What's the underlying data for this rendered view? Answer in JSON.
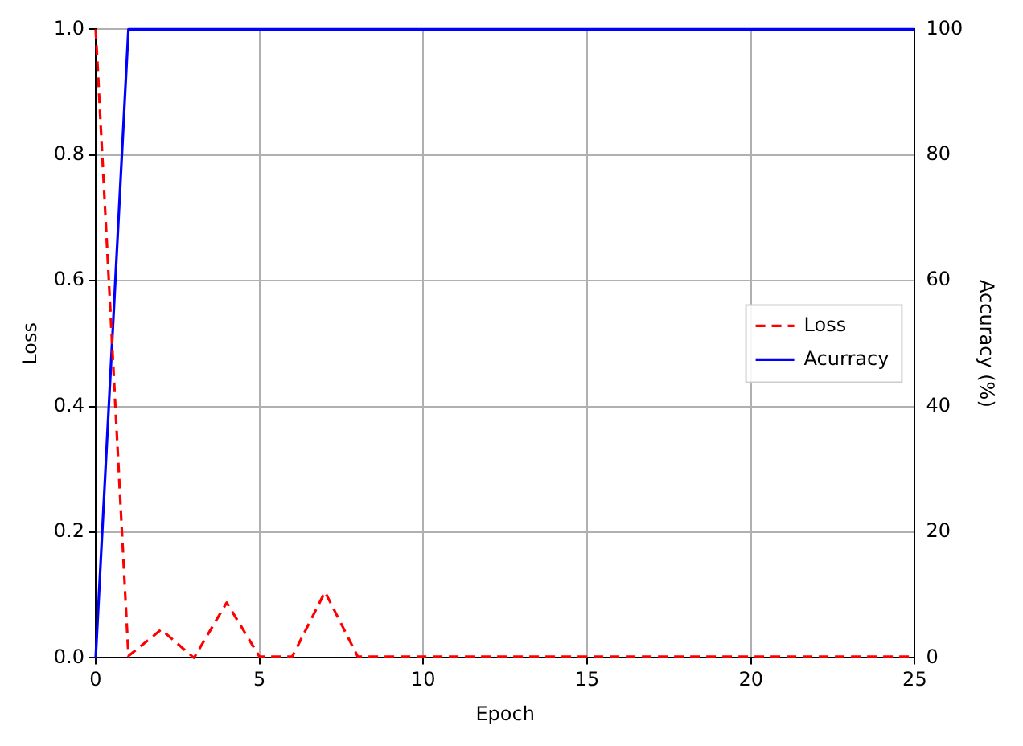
{
  "chart_data": {
    "type": "line",
    "xlabel": "Epoch",
    "ylabel": "Loss",
    "y2label": "Accuracy (%)",
    "x": [
      0,
      1,
      2,
      3,
      4,
      5,
      6,
      7,
      8,
      9,
      10,
      11,
      12,
      13,
      14,
      15,
      16,
      17,
      18,
      19,
      20,
      21,
      22,
      23,
      24,
      25
    ],
    "series": [
      {
        "name": "Loss",
        "color": "#ff0000",
        "line_style": "dashed",
        "values": [
          1.0,
          0.003,
          0.045,
          0.0,
          0.088,
          0.002,
          0.002,
          0.105,
          0.002,
          0.002,
          0.002,
          0.002,
          0.002,
          0.002,
          0.002,
          0.002,
          0.002,
          0.002,
          0.002,
          0.002,
          0.002,
          0.002,
          0.002,
          0.002,
          0.002,
          0.002
        ]
      },
      {
        "name": "Acurracy",
        "color": "#0000ff",
        "line_style": "solid",
        "axis": "y2",
        "values": [
          0,
          100,
          100,
          100,
          100,
          100,
          100,
          100,
          100,
          100,
          100,
          100,
          100,
          100,
          100,
          100,
          100,
          100,
          100,
          100,
          100,
          100,
          100,
          100,
          100,
          100
        ]
      }
    ],
    "xlim": [
      0,
      25
    ],
    "xticks": [
      0,
      5,
      10,
      15,
      20,
      25
    ],
    "ylim": [
      0,
      1.0
    ],
    "yticks": [
      {
        "value": 0,
        "label": "0.0"
      },
      {
        "value": 0.2,
        "label": "0.2"
      },
      {
        "value": 0.4,
        "label": "0.4"
      },
      {
        "value": 0.6,
        "label": "0.6"
      },
      {
        "value": 0.8,
        "label": "0.8"
      },
      {
        "value": 1.0,
        "label": "1.0"
      }
    ],
    "y2lim": [
      0,
      100
    ],
    "y2ticks": [
      0,
      20,
      40,
      60,
      80,
      100
    ],
    "grid": true,
    "legend": "right",
    "marker": "none"
  }
}
